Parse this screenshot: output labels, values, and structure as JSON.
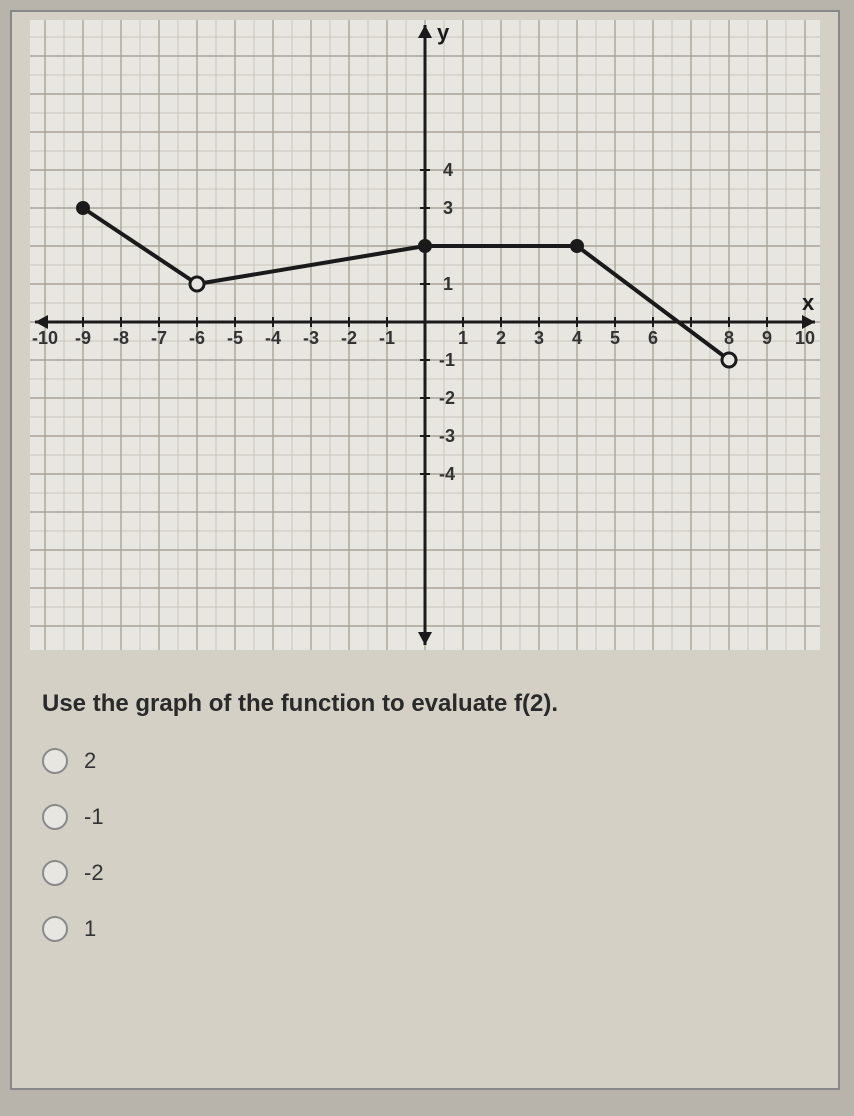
{
  "chart": {
    "type": "line",
    "background_color": "#e8e6e0",
    "minor_grid_color": "#c8c5bc",
    "major_grid_color": "#a8a49a",
    "axis_color": "#1a1a1a",
    "axis_width": 3,
    "line_color": "#1a1a1a",
    "line_width": 4,
    "point_radius": 7,
    "x_axis": {
      "min": -10,
      "max": 10,
      "tick_step": 1,
      "label": "x"
    },
    "y_axis": {
      "min": -4.5,
      "max": 4.5,
      "tick_step": 1,
      "label": "y"
    },
    "x_tick_labels_neg": [
      "-10",
      "-9",
      "-8",
      "-7",
      "-6",
      "-5",
      "-4",
      "-3",
      "-2",
      "-1"
    ],
    "x_tick_labels_pos": [
      "1",
      "2",
      "3",
      "4",
      "5",
      "6",
      "8",
      "9",
      "10"
    ],
    "y_tick_labels_pos": [
      "1",
      "3",
      "4"
    ],
    "y_tick_labels_neg": [
      "-1",
      "-2",
      "-3",
      "-4"
    ],
    "tick_fontsize": 18,
    "axis_label_fontsize": 22,
    "segments": [
      {
        "from": [
          -9,
          3
        ],
        "to": [
          -6,
          1
        ]
      },
      {
        "from": [
          -6,
          1
        ],
        "to": [
          0,
          2
        ]
      },
      {
        "from": [
          0,
          2
        ],
        "to": [
          4,
          2
        ]
      },
      {
        "from": [
          4,
          2
        ],
        "to": [
          8,
          -1
        ]
      }
    ],
    "points": [
      {
        "x": -9,
        "y": 3,
        "filled": true
      },
      {
        "x": -6,
        "y": 1,
        "filled": false
      },
      {
        "x": 0,
        "y": 2,
        "filled": true
      },
      {
        "x": 4,
        "y": 2,
        "filled": true
      },
      {
        "x": 8,
        "y": -1,
        "filled": false
      }
    ]
  },
  "question": "Use the graph of the function to evaluate f(2).",
  "options": [
    {
      "label": "2"
    },
    {
      "label": "-1"
    },
    {
      "label": "-2"
    },
    {
      "label": "1"
    }
  ]
}
